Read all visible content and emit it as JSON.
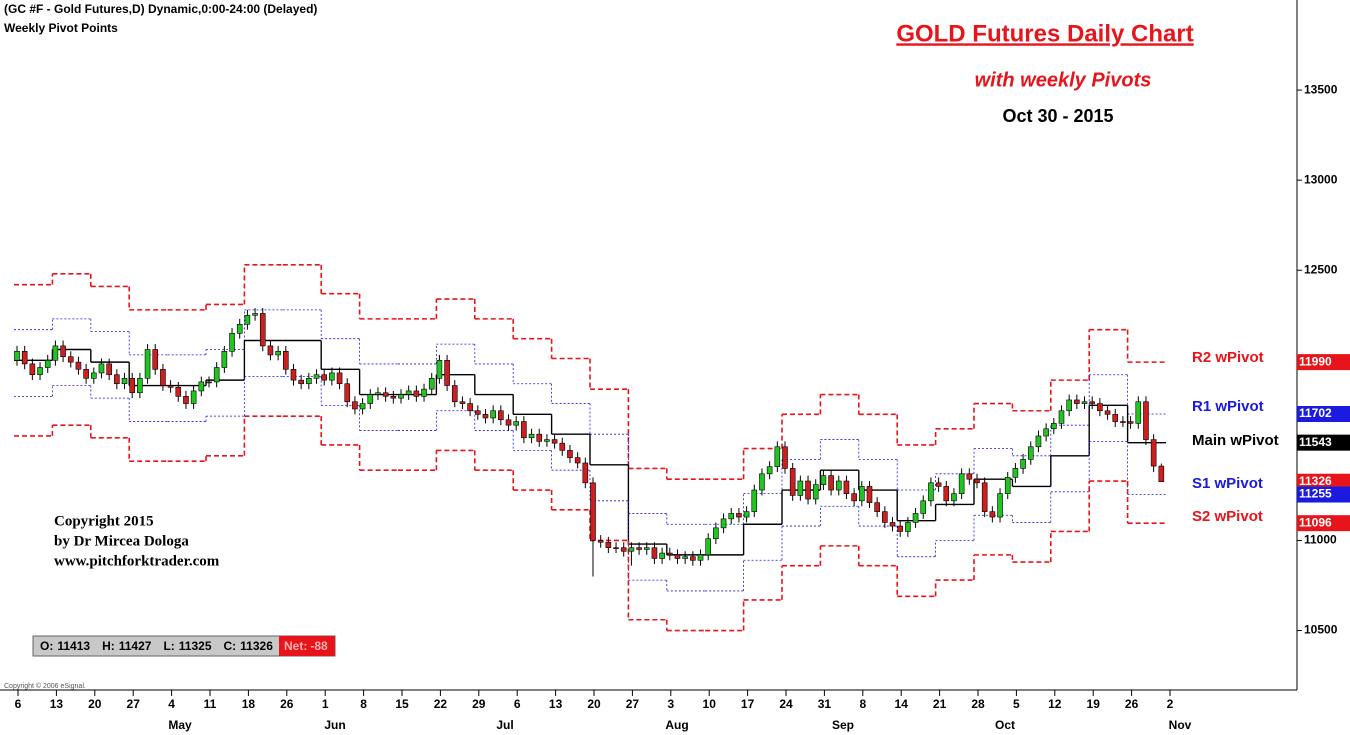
{
  "chart_data": {
    "type": "candlestick",
    "header": "(GC #F - Gold Futures,D) Dynamic,0:00-24:00 (Delayed)",
    "subheader": "Weekly Pivot Points",
    "title": "GOLD Futures Daily Chart",
    "subtitle": "with weekly Pivots",
    "date": "Oct 30 - 2015",
    "copyright": [
      "Copyright 2015",
      "by Dr Mircea Dologa",
      "www.pitchforktrader.com"
    ],
    "vendor": "Copyright © 2006 eSignal.",
    "ohlc_box": [
      {
        "label": "O:",
        "value": 11413
      },
      {
        "label": "H:",
        "value": 11427
      },
      {
        "label": "L:",
        "value": 11325
      },
      {
        "label": "C:",
        "value": 11326
      }
    ],
    "net": {
      "label": "Net:",
      "value": -88
    },
    "week_labels": [
      "6",
      "13",
      "20",
      "27",
      "4",
      "11",
      "18",
      "26",
      "1",
      "8",
      "15",
      "22",
      "29",
      "6",
      "13",
      "20",
      "27",
      "3",
      "10",
      "17",
      "24",
      "31",
      "8",
      "14",
      "21",
      "28",
      "5",
      "12",
      "19",
      "26",
      "2"
    ],
    "months": [
      "May",
      "Jun",
      "Jul",
      "Aug",
      "Sep",
      "Oct",
      "Nov"
    ],
    "ylim": [
      10170,
      14000
    ],
    "yticks": [
      10500,
      11000,
      12500,
      13000,
      13500
    ],
    "up_color": "#22c422",
    "down_color": "#cc2020",
    "candles": [
      [
        12000,
        12080,
        11970,
        12050
      ],
      [
        12050,
        12080,
        11950,
        11980
      ],
      [
        11980,
        12010,
        11890,
        11920
      ],
      [
        11920,
        11990,
        11890,
        11960
      ],
      [
        11960,
        12030,
        11930,
        12000
      ],
      [
        12000,
        12110,
        11970,
        12080
      ],
      [
        12080,
        12110,
        11990,
        12020
      ],
      [
        12020,
        12050,
        11960,
        11990
      ],
      [
        11990,
        12020,
        11920,
        11950
      ],
      [
        11950,
        11980,
        11870,
        11900
      ],
      [
        11900,
        11960,
        11870,
        11930
      ],
      [
        11930,
        12010,
        11900,
        11980
      ],
      [
        11980,
        12010,
        11890,
        11920
      ],
      [
        11920,
        11950,
        11840,
        11870
      ],
      [
        11870,
        11930,
        11840,
        11900
      ],
      [
        11900,
        11930,
        11790,
        11820
      ],
      [
        11820,
        11930,
        11790,
        11900
      ],
      [
        11900,
        12090,
        11870,
        12060
      ],
      [
        12060,
        12090,
        11920,
        11950
      ],
      [
        11950,
        11980,
        11830,
        11860
      ],
      [
        11860,
        11890,
        11820,
        11850
      ],
      [
        11850,
        11880,
        11770,
        11800
      ],
      [
        11800,
        11830,
        11730,
        11760
      ],
      [
        11760,
        11860,
        11730,
        11830
      ],
      [
        11830,
        11910,
        11800,
        11880
      ],
      [
        11880,
        11910,
        11850,
        11880
      ],
      [
        11880,
        11990,
        11850,
        11960
      ],
      [
        11960,
        12080,
        11930,
        12050
      ],
      [
        12050,
        12180,
        12020,
        12150
      ],
      [
        12150,
        12230,
        12120,
        12200
      ],
      [
        12200,
        12280,
        12170,
        12250
      ],
      [
        12250,
        12290,
        12220,
        12260
      ],
      [
        12260,
        12290,
        12050,
        12080
      ],
      [
        12080,
        12110,
        12000,
        12030
      ],
      [
        12030,
        12080,
        12000,
        12050
      ],
      [
        12050,
        12080,
        11920,
        11950
      ],
      [
        11950,
        11980,
        11860,
        11890
      ],
      [
        11890,
        11920,
        11840,
        11870
      ],
      [
        11870,
        11930,
        11840,
        11900
      ],
      [
        11900,
        11950,
        11870,
        11920
      ],
      [
        11920,
        11950,
        11860,
        11890
      ],
      [
        11890,
        11960,
        11860,
        11930
      ],
      [
        11930,
        11960,
        11840,
        11870
      ],
      [
        11870,
        11900,
        11740,
        11770
      ],
      [
        11770,
        11800,
        11700,
        11730
      ],
      [
        11730,
        11790,
        11700,
        11760
      ],
      [
        11760,
        11840,
        11730,
        11810
      ],
      [
        11810,
        11850,
        11780,
        11820
      ],
      [
        11820,
        11850,
        11770,
        11800
      ],
      [
        11800,
        11830,
        11760,
        11790
      ],
      [
        11790,
        11840,
        11760,
        11810
      ],
      [
        11810,
        11860,
        11780,
        11830
      ],
      [
        11830,
        11860,
        11770,
        11800
      ],
      [
        11800,
        11870,
        11770,
        11840
      ],
      [
        11840,
        11930,
        11810,
        11900
      ],
      [
        11900,
        12030,
        11870,
        12000
      ],
      [
        12000,
        12030,
        11830,
        11860
      ],
      [
        11860,
        11890,
        11740,
        11770
      ],
      [
        11770,
        11800,
        11730,
        11760
      ],
      [
        11760,
        11790,
        11690,
        11720
      ],
      [
        11720,
        11750,
        11670,
        11700
      ],
      [
        11700,
        11730,
        11650,
        11680
      ],
      [
        11680,
        11750,
        11650,
        11720
      ],
      [
        11720,
        11750,
        11640,
        11670
      ],
      [
        11670,
        11700,
        11610,
        11640
      ],
      [
        11640,
        11690,
        11610,
        11660
      ],
      [
        11660,
        11690,
        11540,
        11570
      ],
      [
        11570,
        11620,
        11540,
        11590
      ],
      [
        11590,
        11620,
        11520,
        11550
      ],
      [
        11550,
        11590,
        11520,
        11560
      ],
      [
        11560,
        11590,
        11510,
        11540
      ],
      [
        11540,
        11570,
        11470,
        11500
      ],
      [
        11500,
        11530,
        11430,
        11460
      ],
      [
        11460,
        11490,
        11400,
        11430
      ],
      [
        11430,
        11460,
        11290,
        11320
      ],
      [
        11320,
        11350,
        10800,
        11000
      ],
      [
        11000,
        11030,
        10960,
        10990
      ],
      [
        10990,
        11020,
        10930,
        10960
      ],
      [
        10960,
        10990,
        10930,
        10960
      ],
      [
        10960,
        10990,
        10910,
        10940
      ],
      [
        10940,
        10990,
        10860,
        10960
      ],
      [
        10960,
        10990,
        10920,
        10950
      ],
      [
        10950,
        10990,
        10920,
        10960
      ],
      [
        10960,
        10990,
        10870,
        10900
      ],
      [
        10900,
        10960,
        10870,
        10930
      ],
      [
        10930,
        10960,
        10890,
        10920
      ],
      [
        10920,
        10950,
        10870,
        10900
      ],
      [
        10900,
        10940,
        10870,
        10910
      ],
      [
        10910,
        10940,
        10860,
        10890
      ],
      [
        10890,
        10950,
        10860,
        10920
      ],
      [
        10920,
        11040,
        10890,
        11010
      ],
      [
        11010,
        11100,
        10980,
        11070
      ],
      [
        11070,
        11150,
        11040,
        11120
      ],
      [
        11120,
        11180,
        11090,
        11150
      ],
      [
        11150,
        11180,
        11100,
        11130
      ],
      [
        11130,
        11190,
        11100,
        11160
      ],
      [
        11160,
        11310,
        11130,
        11280
      ],
      [
        11280,
        11400,
        11250,
        11370
      ],
      [
        11370,
        11440,
        11340,
        11410
      ],
      [
        11410,
        11550,
        11380,
        11520
      ],
      [
        11520,
        11550,
        11370,
        11400
      ],
      [
        11400,
        11430,
        11220,
        11250
      ],
      [
        11250,
        11360,
        11220,
        11330
      ],
      [
        11330,
        11360,
        11200,
        11230
      ],
      [
        11230,
        11340,
        11200,
        11310
      ],
      [
        11310,
        11390,
        11280,
        11360
      ],
      [
        11360,
        11390,
        11250,
        11280
      ],
      [
        11280,
        11360,
        11250,
        11330
      ],
      [
        11330,
        11360,
        11230,
        11260
      ],
      [
        11260,
        11290,
        11190,
        11220
      ],
      [
        11220,
        11330,
        11190,
        11300
      ],
      [
        11300,
        11330,
        11180,
        11210
      ],
      [
        11210,
        11240,
        11130,
        11160
      ],
      [
        11160,
        11190,
        11070,
        11100
      ],
      [
        11100,
        11130,
        11050,
        11080
      ],
      [
        11080,
        11110,
        11020,
        11050
      ],
      [
        11050,
        11130,
        11020,
        11100
      ],
      [
        11100,
        11180,
        11070,
        11150
      ],
      [
        11150,
        11250,
        11120,
        11220
      ],
      [
        11220,
        11350,
        11190,
        11320
      ],
      [
        11320,
        11350,
        11270,
        11300
      ],
      [
        11300,
        11330,
        11190,
        11220
      ],
      [
        11220,
        11290,
        11190,
        11260
      ],
      [
        11260,
        11400,
        11230,
        11370
      ],
      [
        11370,
        11400,
        11310,
        11340
      ],
      [
        11340,
        11370,
        11290,
        11320
      ],
      [
        11320,
        11350,
        11130,
        11160
      ],
      [
        11160,
        11190,
        11100,
        11130
      ],
      [
        11130,
        11290,
        11100,
        11260
      ],
      [
        11260,
        11380,
        11230,
        11350
      ],
      [
        11350,
        11430,
        11320,
        11400
      ],
      [
        11400,
        11480,
        11370,
        11450
      ],
      [
        11450,
        11550,
        11420,
        11520
      ],
      [
        11520,
        11610,
        11490,
        11580
      ],
      [
        11580,
        11650,
        11550,
        11620
      ],
      [
        11620,
        11680,
        11590,
        11650
      ],
      [
        11650,
        11750,
        11620,
        11720
      ],
      [
        11720,
        11810,
        11690,
        11780
      ],
      [
        11780,
        11810,
        11730,
        11760
      ],
      [
        11760,
        11800,
        11730,
        11770
      ],
      [
        11770,
        11800,
        11730,
        11760
      ],
      [
        11760,
        11790,
        11690,
        11720
      ],
      [
        11720,
        11750,
        11670,
        11700
      ],
      [
        11700,
        11730,
        11630,
        11660
      ],
      [
        11660,
        11690,
        11630,
        11660
      ],
      [
        11660,
        11690,
        11620,
        11650
      ],
      [
        11650,
        11800,
        11620,
        11770
      ],
      [
        11770,
        11800,
        11530,
        11560
      ],
      [
        11560,
        11590,
        11380,
        11413
      ],
      [
        11413,
        11427,
        11325,
        11326
      ]
    ],
    "series": [
      {
        "name": "R2 wPivot",
        "color": "#e8141b",
        "values": [
          12420,
          12480,
          12410,
          12280,
          12280,
          12310,
          12530,
          12530,
          12370,
          12230,
          12230,
          12340,
          12230,
          12120,
          12010,
          11840,
          11400,
          11340,
          11340,
          11510,
          11700,
          11810,
          11700,
          11530,
          11620,
          11760,
          11720,
          11890,
          12170,
          11990
        ]
      },
      {
        "name": "R1 wPivot",
        "color": "#1a1ae0",
        "values": [
          12170,
          12230,
          12160,
          12030,
          12030,
          12060,
          12280,
          12280,
          12120,
          11980,
          11980,
          12090,
          11980,
          11870,
          11760,
          11590,
          11150,
          11090,
          11090,
          11260,
          11450,
          11560,
          11450,
          11280,
          11370,
          11510,
          11470,
          11640,
          11920,
          11702
        ]
      },
      {
        "name": "Main wPivot",
        "color": "#000000",
        "values": [
          12000,
          12060,
          11990,
          11860,
          11860,
          11890,
          12110,
          12110,
          11950,
          11810,
          11810,
          11920,
          11810,
          11700,
          11590,
          11420,
          10980,
          10920,
          10920,
          11090,
          11280,
          11390,
          11280,
          11110,
          11200,
          11340,
          11300,
          11470,
          11750,
          11543
        ]
      },
      {
        "name": "S1 wPivot",
        "color": "#1a1ae0",
        "values": [
          11800,
          11860,
          11790,
          11660,
          11660,
          11690,
          11910,
          11910,
          11750,
          11610,
          11610,
          11720,
          11610,
          11500,
          11390,
          11220,
          10780,
          10720,
          10720,
          10890,
          11080,
          11190,
          11080,
          10910,
          11000,
          11140,
          11100,
          11270,
          11550,
          11255
        ]
      },
      {
        "name": "S2 wPivot",
        "color": "#e8141b",
        "values": [
          11580,
          11640,
          11570,
          11440,
          11440,
          11470,
          11690,
          11690,
          11530,
          11390,
          11390,
          11500,
          11390,
          11280,
          11170,
          11000,
          10560,
          10500,
          10500,
          10670,
          10860,
          10970,
          10860,
          10690,
          10780,
          10920,
          10880,
          11050,
          11330,
          11096
        ]
      }
    ],
    "price_tags": [
      {
        "value": 11990,
        "color": "#e8141b"
      },
      {
        "value": 11702,
        "color": "#1a1ae0"
      },
      {
        "value": 11543,
        "color": "#000000"
      },
      {
        "value": 11326,
        "color": "#e8141b"
      },
      {
        "value": 11255,
        "color": "#1a1ae0"
      },
      {
        "value": 11096,
        "color": "#e8141b"
      }
    ]
  }
}
